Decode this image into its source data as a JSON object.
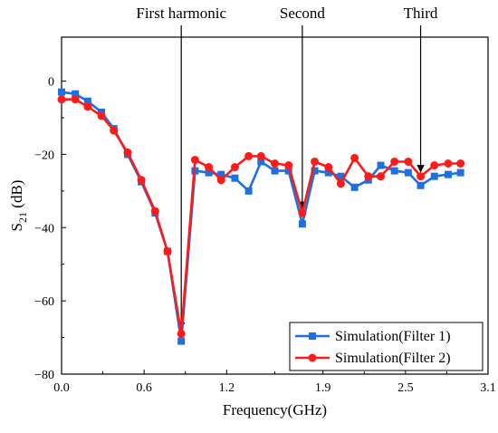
{
  "chart_data": {
    "type": "line",
    "xlabel": "Frequency(GHz)",
    "ylabel": {
      "base": "S",
      "sub": "21",
      "rest": " (dB)"
    },
    "xlim": [
      0.0,
      3.1
    ],
    "ylim": [
      -80,
      12
    ],
    "xticks": [
      0.0,
      0.6,
      1.2,
      1.9,
      2.5,
      3.1
    ],
    "xtick_labels": [
      "0.0",
      "0.6",
      "1.2",
      "1.9",
      "2.5",
      "3.1"
    ],
    "yticks": [
      0,
      -20,
      -40,
      -60,
      -80
    ],
    "ytick_labels": [
      "0",
      "−20",
      "−40",
      "−60",
      "−80"
    ],
    "legend_position": "bottom-right",
    "series": [
      {
        "name": "Simulation(Filter 1)",
        "color": "#1f6fe0",
        "marker": "square",
        "points": [
          [
            0.0,
            -3.0
          ],
          [
            0.1,
            -3.5
          ],
          [
            0.19,
            -5.5
          ],
          [
            0.29,
            -8.5
          ],
          [
            0.38,
            -13.0
          ],
          [
            0.48,
            -20.0
          ],
          [
            0.58,
            -27.5
          ],
          [
            0.68,
            -36.0
          ],
          [
            0.77,
            -46.5
          ],
          [
            0.87,
            -71.0
          ],
          [
            0.97,
            -24.5
          ],
          [
            1.07,
            -25.0
          ],
          [
            1.16,
            -25.5
          ],
          [
            1.26,
            -26.5
          ],
          [
            1.36,
            -30.0
          ],
          [
            1.45,
            -22.0
          ],
          [
            1.55,
            -24.5
          ],
          [
            1.65,
            -24.5
          ],
          [
            1.75,
            -39.0
          ],
          [
            1.84,
            -24.5
          ],
          [
            1.94,
            -25.0
          ],
          [
            2.03,
            -26.0
          ],
          [
            2.13,
            -29.0
          ],
          [
            2.23,
            -27.0
          ],
          [
            2.32,
            -23.0
          ],
          [
            2.42,
            -24.5
          ],
          [
            2.52,
            -25.0
          ],
          [
            2.61,
            -28.5
          ],
          [
            2.71,
            -26.0
          ],
          [
            2.81,
            -25.5
          ],
          [
            2.9,
            -25.0
          ]
        ]
      },
      {
        "name": "Simulation(Filter 2)",
        "color": "#ff1a1a",
        "marker": "circle",
        "points": [
          [
            0.0,
            -5.0
          ],
          [
            0.1,
            -5.0
          ],
          [
            0.19,
            -7.0
          ],
          [
            0.29,
            -9.5
          ],
          [
            0.38,
            -13.5
          ],
          [
            0.48,
            -19.5
          ],
          [
            0.58,
            -27.0
          ],
          [
            0.68,
            -35.5
          ],
          [
            0.77,
            -46.5
          ],
          [
            0.87,
            -69.0
          ],
          [
            0.97,
            -21.5
          ],
          [
            1.07,
            -23.5
          ],
          [
            1.16,
            -27.0
          ],
          [
            1.26,
            -23.5
          ],
          [
            1.36,
            -20.5
          ],
          [
            1.45,
            -20.5
          ],
          [
            1.55,
            -22.5
          ],
          [
            1.65,
            -23.0
          ],
          [
            1.75,
            -36.0
          ],
          [
            1.84,
            -22.0
          ],
          [
            1.94,
            -23.5
          ],
          [
            2.03,
            -28.0
          ],
          [
            2.13,
            -21.0
          ],
          [
            2.23,
            -26.0
          ],
          [
            2.32,
            -26.0
          ],
          [
            2.42,
            -22.0
          ],
          [
            2.52,
            -22.0
          ],
          [
            2.61,
            -26.0
          ],
          [
            2.71,
            -23.0
          ],
          [
            2.81,
            -22.5
          ],
          [
            2.9,
            -22.5
          ]
        ]
      }
    ],
    "annotations": [
      {
        "text": "First harmonic",
        "arrow_x": 0.87,
        "arrow_y": -69.0
      },
      {
        "text": "Second",
        "arrow_x": 1.75,
        "arrow_y": -36.0
      },
      {
        "text": "Third",
        "arrow_x": 2.61,
        "arrow_y": -26.0
      }
    ]
  }
}
